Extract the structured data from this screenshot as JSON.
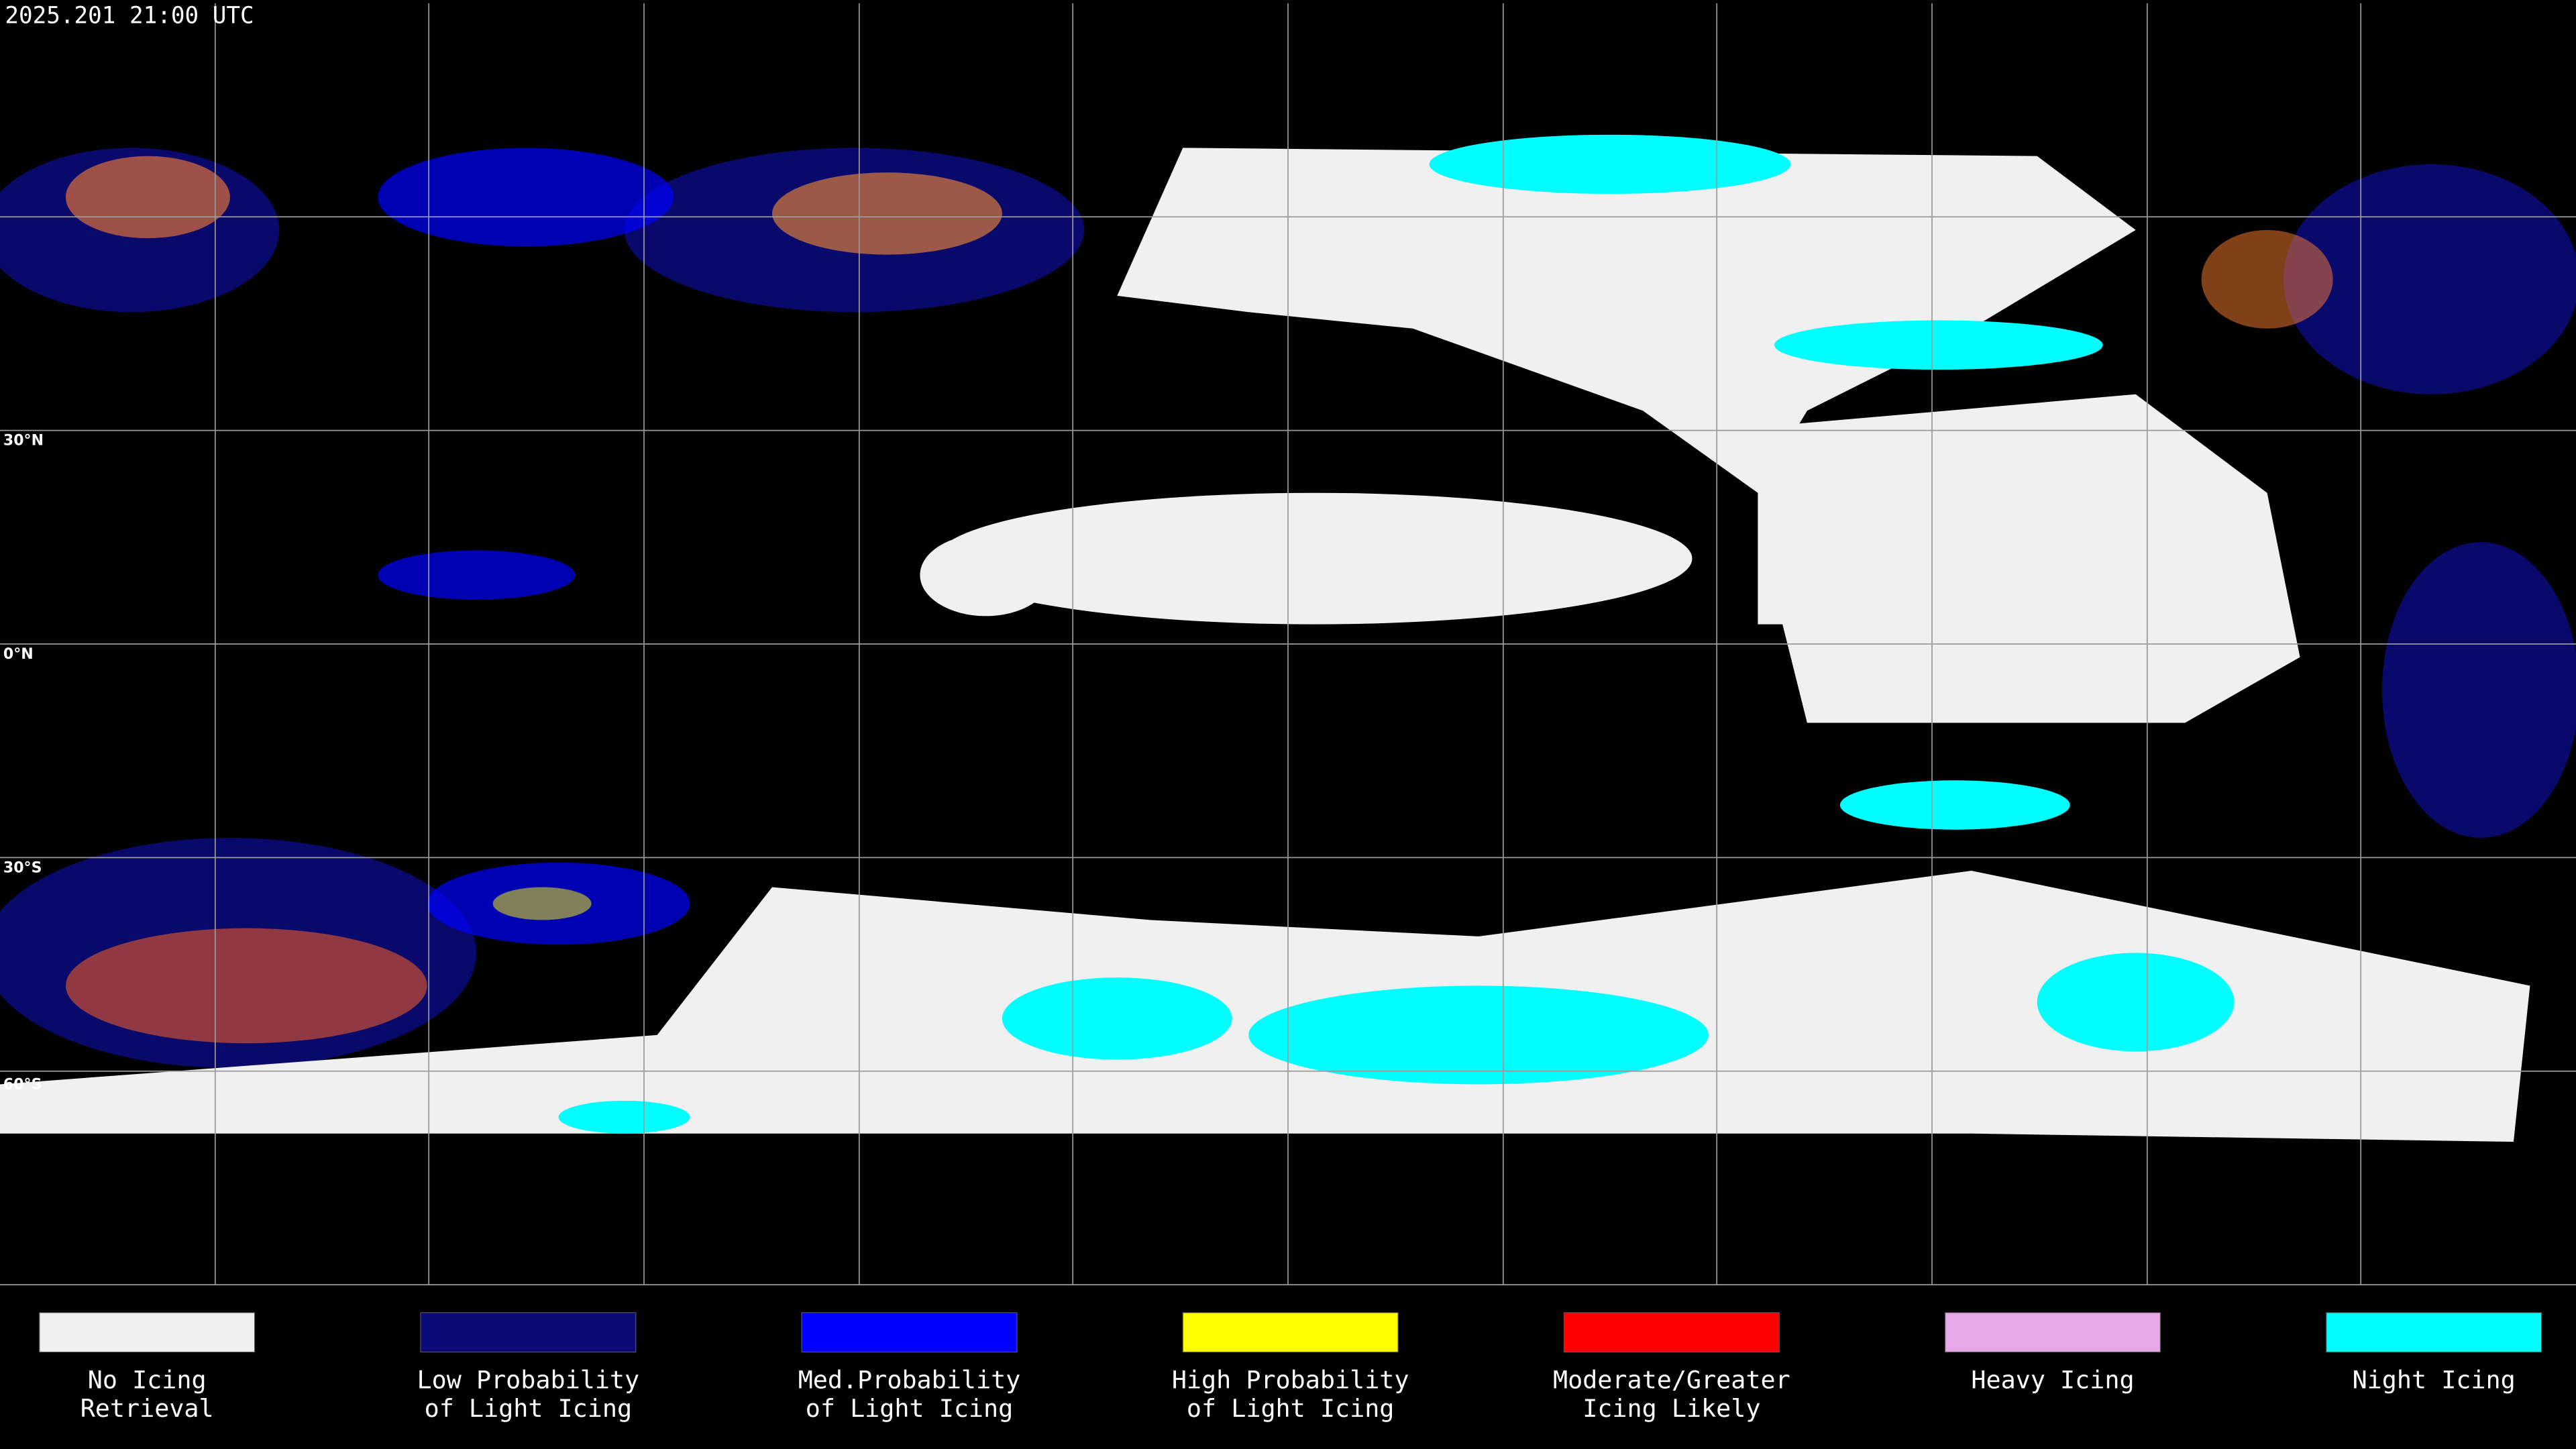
{
  "header": {
    "timestamp": "2025.201 21:00 UTC"
  },
  "map": {
    "latitude_labels": [
      "30°N",
      "0°N",
      "30°S",
      "60°S"
    ]
  },
  "legend": {
    "items": [
      {
        "lines": [
          "No Icing",
          "Retrieval"
        ],
        "color": "#f0f0f0"
      },
      {
        "lines": [
          "Low Probability",
          "of Light Icing"
        ],
        "color": "#0a0a78"
      },
      {
        "lines": [
          "Med.Probability",
          "of Light Icing"
        ],
        "color": "#0000ff"
      },
      {
        "lines": [
          "High Probability",
          "of Light Icing"
        ],
        "color": "#ffff00"
      },
      {
        "lines": [
          "Moderate/Greater",
          "Icing Likely"
        ],
        "color": "#ff0000"
      },
      {
        "lines": [
          "Heavy Icing"
        ],
        "color": "#e8a8e8"
      },
      {
        "lines": [
          "Night Icing"
        ],
        "color": "#00ffff"
      }
    ]
  }
}
